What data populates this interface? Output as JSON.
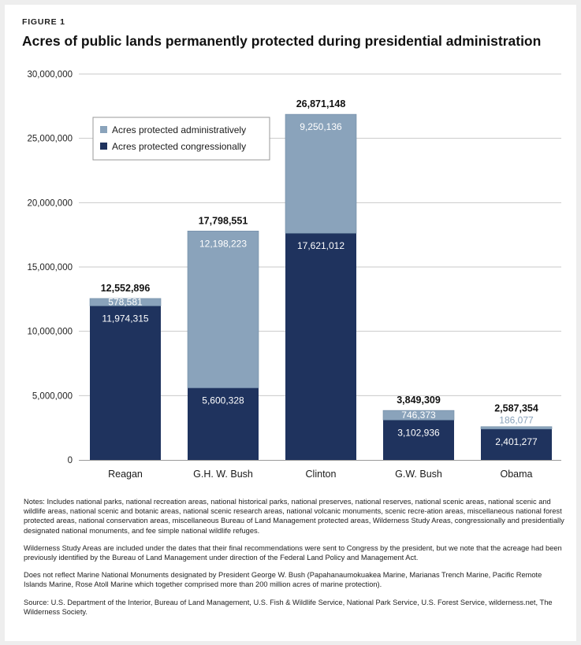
{
  "figure_label": "FIGURE 1",
  "chart_data": {
    "type": "bar",
    "stacked": true,
    "title": "Acres of public lands permanently protected during presidential administration",
    "categories": [
      "Reagan",
      "G.H. W. Bush",
      "Clinton",
      "G.W. Bush",
      "Obama"
    ],
    "series": [
      {
        "name": "Acres protected congressionally",
        "color": "#1f335e",
        "values": [
          11974315,
          5600328,
          17621012,
          3102936,
          2401277
        ],
        "labels": [
          "11,974,315",
          "5,600,328",
          "17,621,012",
          "3,102,936",
          "2,401,277"
        ]
      },
      {
        "name": "Acres protected administratively",
        "color": "#8aa3bb",
        "values": [
          578581,
          12198223,
          9250136,
          746373,
          186077
        ],
        "labels": [
          "578,581",
          "12,198,223",
          "9,250,136",
          "746,373",
          "186,077"
        ]
      }
    ],
    "totals": [
      12552896,
      17798551,
      26871148,
      3849309,
      2587354
    ],
    "total_labels": [
      "12,552,896",
      "17,798,551",
      "26,871,148",
      "3,849,309",
      "2,587,354"
    ],
    "ylim": [
      0,
      30000000
    ],
    "y_ticks": [
      0,
      5000000,
      10000000,
      15000000,
      20000000,
      25000000,
      30000000
    ],
    "y_tick_labels": [
      "0",
      "5,000,000",
      "10,000,000",
      "15,000,000",
      "20,000,000",
      "25,000,000",
      "30,000,000"
    ],
    "grid": true,
    "legend": {
      "position": "top-left",
      "items": [
        {
          "label": "Acres protected administratively",
          "color": "#8aa3bb"
        },
        {
          "label": "Acres protected congressionally",
          "color": "#1f335e"
        }
      ]
    }
  },
  "notes": [
    "Notes: Includes  national parks, national recreation areas, national historical parks, national preserves, national reserves, national scenic areas, national scenic and wildlife areas, national scenic and botanic areas, national scenic research areas, national volcanic monuments, scenic recre-ation areas, miscellaneous national forest protected areas, national conservation areas, miscellaneous Bureau of Land Management protected areas, Wilderness Study Areas, congressionally and presidentially designated national monuments, and fee simple national wildlife refuges.",
    "Wilderness Study Areas are included under the dates that their final recommendations were sent to Congress by the president, but we note that the acreage had been previously identified by the Bureau of Land Management under direction of the Federal Land Policy and Management Act.",
    "Does not reflect Marine National Monuments designated by President George W. Bush (Papahanaumokuakea Marine, Marianas Trench Marine, Pacific Remote Islands Marine, Rose Atoll Marine which together comprised more than 200 million acres of marine protection).",
    "Source: U.S. Department of the Interior, Bureau of Land Management, U.S. Fish & Wildlife Service, National Park Service, U.S. Forest Service, wilderness.net, The Wilderness Society."
  ]
}
